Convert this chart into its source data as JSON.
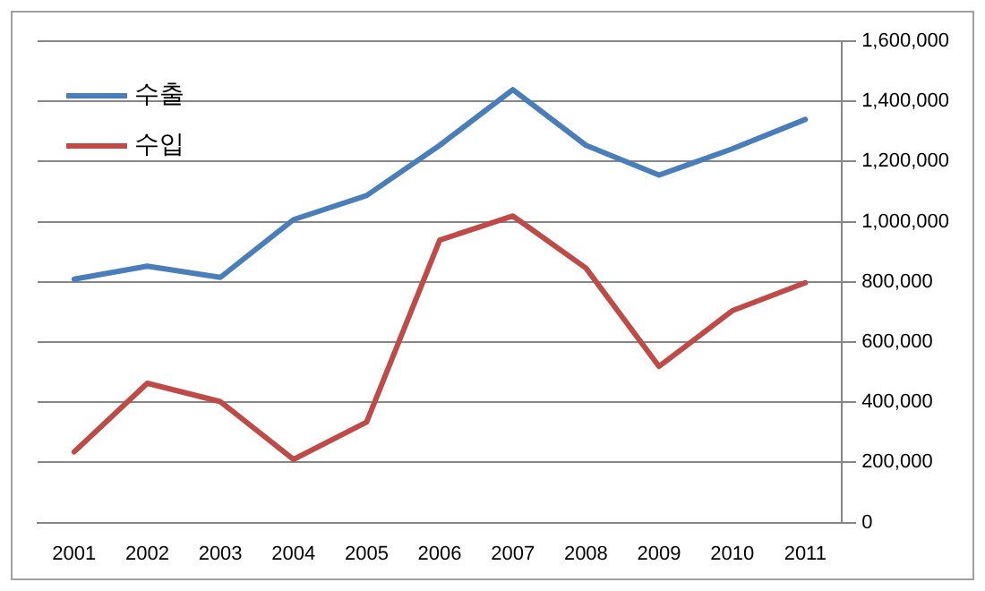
{
  "chart_data": {
    "type": "line",
    "categories": [
      "2001",
      "2002",
      "2003",
      "2004",
      "2005",
      "2006",
      "2007",
      "2008",
      "2009",
      "2010",
      "2011"
    ],
    "series": [
      {
        "name": "수출",
        "color": "#4a7ebb",
        "values": [
          809000,
          852000,
          815000,
          1007000,
          1087000,
          1254000,
          1439000,
          1254000,
          1155000,
          1242000,
          1340000
        ]
      },
      {
        "name": "수입",
        "color": "#be4b48",
        "values": [
          235000,
          463000,
          402000,
          210000,
          334000,
          939000,
          1019000,
          846000,
          519000,
          704000,
          797000
        ]
      }
    ],
    "ylim": [
      0,
      1600000
    ],
    "yticks": [
      {
        "value": 0,
        "label": "0"
      },
      {
        "value": 200000,
        "label": "200,000"
      },
      {
        "value": 400000,
        "label": "400,000"
      },
      {
        "value": 600000,
        "label": "600,000"
      },
      {
        "value": 800000,
        "label": "800,000"
      },
      {
        "value": 1000000,
        "label": "1,000,000"
      },
      {
        "value": 1200000,
        "label": "1,200,000"
      },
      {
        "value": 1400000,
        "label": "1,400,000"
      },
      {
        "value": 1600000,
        "label": "1,600,000"
      }
    ],
    "grid": "y",
    "legend": "top left",
    "marker": "none",
    "line_style": "solid"
  }
}
